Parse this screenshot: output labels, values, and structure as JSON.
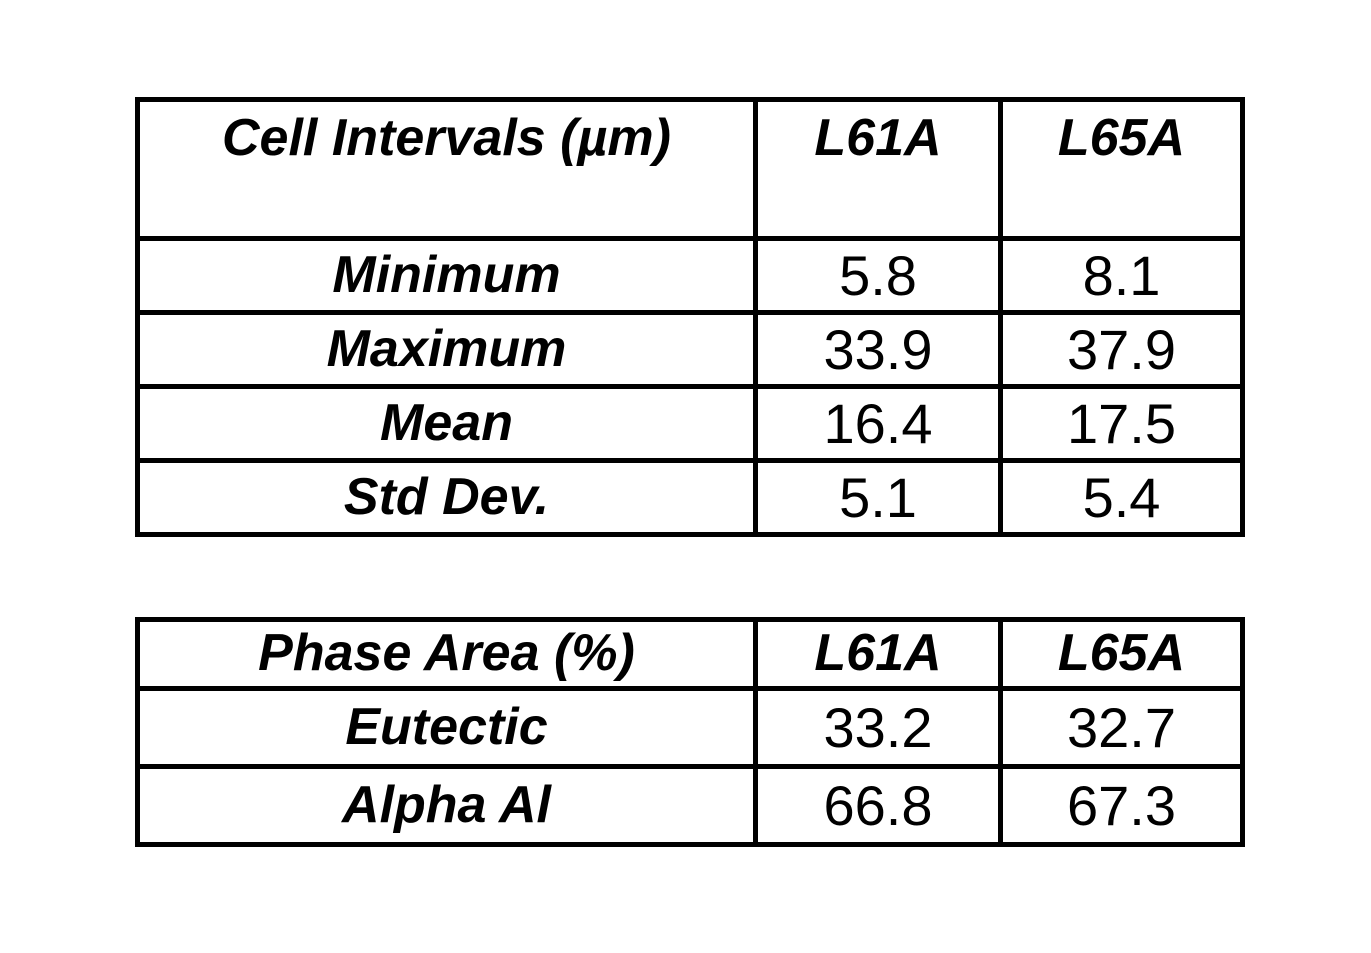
{
  "page": {
    "background_color": "#ffffff",
    "text_color": "#000000",
    "border_color": "#000000"
  },
  "tables": [
    {
      "title": "Cell Intervals (µm)",
      "columns": [
        "L61A",
        "L65A"
      ],
      "rows": [
        {
          "label": "Minimum",
          "values": [
            "5.8",
            "8.1"
          ]
        },
        {
          "label": "Maximum",
          "values": [
            "33.9",
            "37.9"
          ]
        },
        {
          "label": "Mean",
          "values": [
            "16.4",
            "17.5"
          ]
        },
        {
          "label": "Std Dev.",
          "values": [
            "5.1",
            "5.4"
          ]
        }
      ]
    },
    {
      "title": "Phase Area (%)",
      "columns": [
        "L61A",
        "L65A"
      ],
      "rows": [
        {
          "label": "Eutectic",
          "values": [
            "33.2",
            "32.7"
          ]
        },
        {
          "label": "Alpha Al",
          "values": [
            "66.8",
            "67.3"
          ]
        }
      ]
    }
  ],
  "chart_data": [
    {
      "type": "table",
      "title": "Cell Intervals (µm)",
      "columns": [
        "Cell Intervals (µm)",
        "L61A",
        "L65A"
      ],
      "rows": [
        [
          "Minimum",
          5.8,
          8.1
        ],
        [
          "Maximum",
          33.9,
          37.9
        ],
        [
          "Mean",
          16.4,
          17.5
        ],
        [
          "Std Dev.",
          5.1,
          5.4
        ]
      ]
    },
    {
      "type": "table",
      "title": "Phase Area (%)",
      "columns": [
        "Phase Area (%)",
        "L61A",
        "L65A"
      ],
      "rows": [
        [
          "Eutectic",
          33.2,
          32.7
        ],
        [
          "Alpha Al",
          66.8,
          67.3
        ]
      ]
    }
  ]
}
